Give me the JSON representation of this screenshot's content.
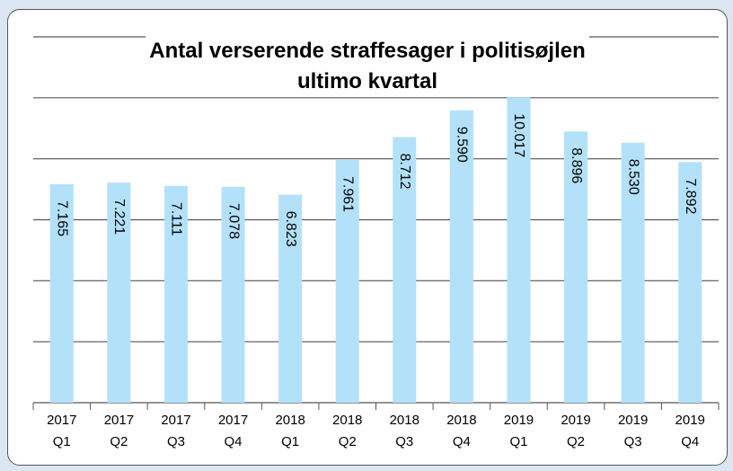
{
  "chart_data": {
    "type": "bar",
    "title": "Antal verserende straffesager i politisøjlen ultimo kvartal",
    "categories": [
      "2017 Q1",
      "2017 Q2",
      "2017 Q3",
      "2017 Q4",
      "2018 Q1",
      "2018 Q2",
      "2018 Q3",
      "2018 Q4",
      "2019 Q1",
      "2019 Q2",
      "2019 Q3",
      "2019 Q4"
    ],
    "values": [
      7165,
      7221,
      7111,
      7078,
      6823,
      7961,
      8712,
      9590,
      10017,
      8896,
      8530,
      7892
    ],
    "value_labels": [
      "7.165",
      "7.221",
      "7.111",
      "7.078",
      "6.823",
      "7.961",
      "8.712",
      "9.590",
      "10.017",
      "8.896",
      "8.530",
      "7.892"
    ],
    "color": "#b3e1fa",
    "ylim": [
      0,
      12000
    ],
    "yticks": [
      0,
      2000,
      4000,
      6000,
      8000,
      10000,
      12000
    ],
    "grid": true
  }
}
